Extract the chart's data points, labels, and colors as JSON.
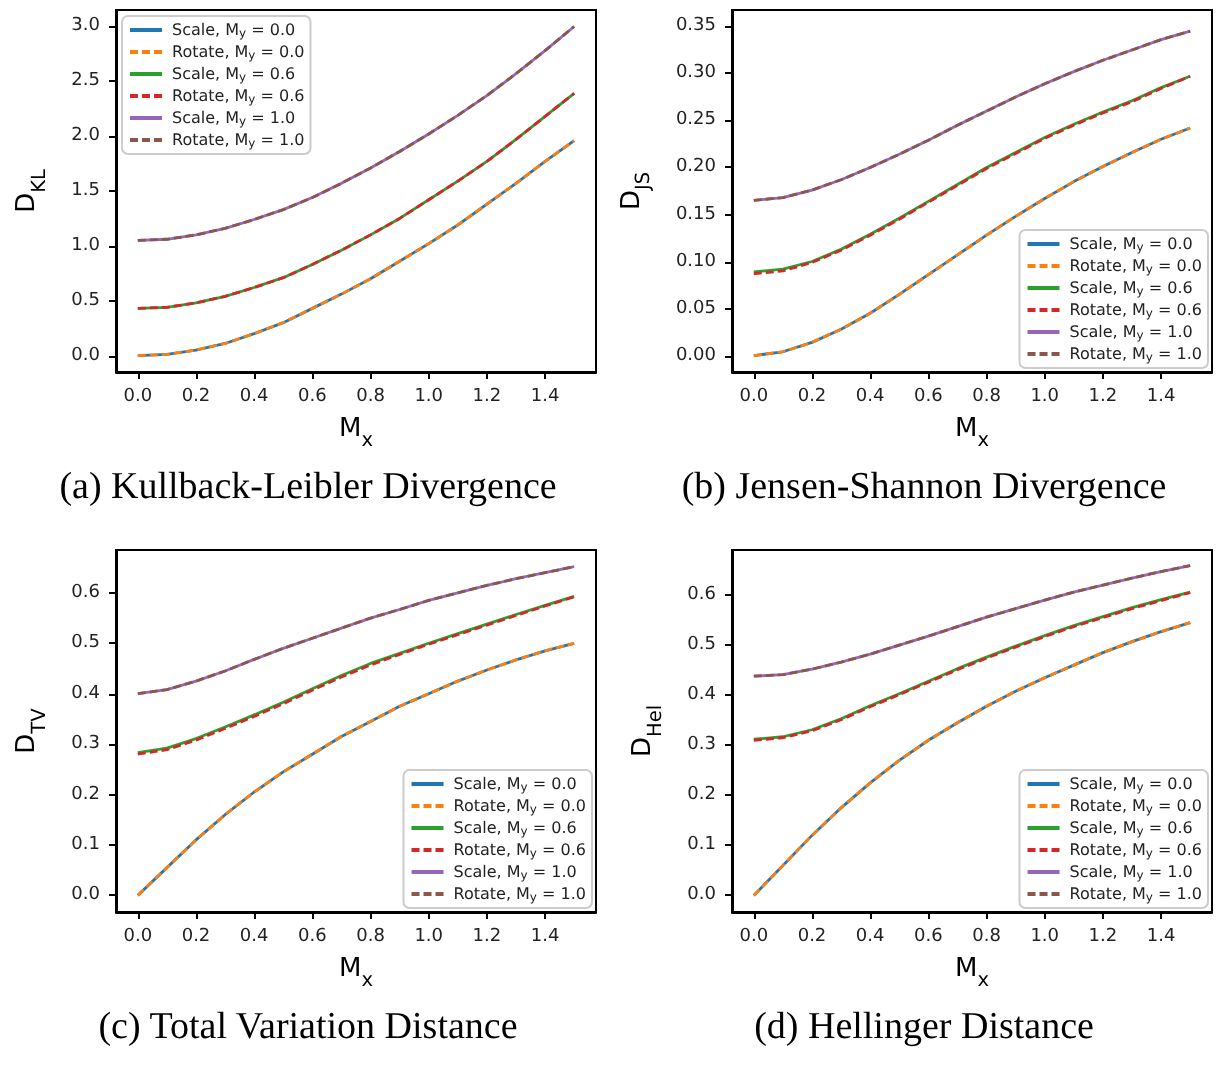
{
  "chart_data": [
    {
      "type": "line",
      "title": "(a) Kullback-Leibler Divergence",
      "xlabel": "M$_{x}$",
      "ylabel": "D$_{KL}$",
      "legend": "top left",
      "grid": false,
      "marker": "none",
      "x": [
        0,
        0.1,
        0.2,
        0.3,
        0.4,
        0.5,
        0.6,
        0.7,
        0.8,
        0.9,
        1.0,
        1.1,
        1.2,
        1.3,
        1.4,
        1.5
      ],
      "xlim": [
        -0.075,
        1.575
      ],
      "xticks": [
        {
          "value": 0,
          "label": "0.0"
        },
        {
          "value": 0.2,
          "label": "0.2"
        },
        {
          "value": 0.4,
          "label": "0.4"
        },
        {
          "value": 0.6,
          "label": "0.6"
        },
        {
          "value": 0.8,
          "label": "0.8"
        },
        {
          "value": 1,
          "label": "1.0"
        },
        {
          "value": 1.2,
          "label": "1.2"
        },
        {
          "value": 1.4,
          "label": "1.4"
        }
      ],
      "ylim": [
        -0.15,
        3.15
      ],
      "yticks": [
        {
          "value": 0,
          "label": "0.0"
        },
        0.5,
        {
          "value": 1,
          "label": "1.0"
        },
        1.5,
        {
          "value": 2,
          "label": "2.0"
        },
        2.5,
        {
          "value": 3,
          "label": "3.0"
        }
      ],
      "series": [
        {
          "name": "Scale, M$_{y}$ = 0.0",
          "color": "#1f77b4",
          "line_style": "solid",
          "values": [
            0,
            0.01,
            0.05,
            0.11,
            0.2,
            0.3,
            0.43,
            0.56,
            0.7,
            0.86,
            1.02,
            1.19,
            1.38,
            1.57,
            1.77,
            1.96
          ]
        },
        {
          "name": "Rotate, M$_{y}$ = 0.0",
          "color": "#ff7f0e",
          "line_style": "dashed",
          "values": [
            0,
            0.01,
            0.05,
            0.11,
            0.2,
            0.3,
            0.43,
            0.56,
            0.7,
            0.86,
            1.02,
            1.19,
            1.38,
            1.57,
            1.77,
            1.96
          ]
        },
        {
          "name": "Scale, M$_{y}$ = 0.6",
          "color": "#2ca02c",
          "line_style": "solid",
          "values": [
            0.43,
            0.44,
            0.48,
            0.54,
            0.62,
            0.71,
            0.83,
            0.96,
            1.1,
            1.25,
            1.42,
            1.59,
            1.77,
            1.97,
            2.18,
            2.39
          ]
        },
        {
          "name": "Rotate, M$_{y}$ = 0.6",
          "color": "#d62728",
          "line_style": "dashed",
          "values": [
            0.43,
            0.44,
            0.48,
            0.54,
            0.62,
            0.71,
            0.83,
            0.96,
            1.1,
            1.25,
            1.42,
            1.59,
            1.77,
            1.97,
            2.18,
            2.39
          ]
        },
        {
          "name": "Scale, M$_{y}$ = 1.0",
          "color": "#9467bd",
          "line_style": "solid",
          "values": [
            1.05,
            1.06,
            1.1,
            1.16,
            1.24,
            1.33,
            1.44,
            1.57,
            1.71,
            1.86,
            2.02,
            2.19,
            2.37,
            2.57,
            2.78,
            3.0
          ]
        },
        {
          "name": "Rotate, M$_{y}$ = 1.0",
          "color": "#8c564b",
          "line_style": "dashed",
          "values": [
            1.05,
            1.06,
            1.1,
            1.16,
            1.24,
            1.33,
            1.44,
            1.57,
            1.71,
            1.86,
            2.02,
            2.19,
            2.37,
            2.57,
            2.78,
            3.0
          ]
        }
      ]
    },
    {
      "type": "line",
      "title": "(b) Jensen-Shannon Divergence",
      "xlabel": "M$_{x}$",
      "ylabel": "D$_{JS}$",
      "legend": "bottom right",
      "grid": false,
      "marker": "none",
      "x": [
        0,
        0.1,
        0.2,
        0.3,
        0.4,
        0.5,
        0.6,
        0.7,
        0.8,
        0.9,
        1.0,
        1.1,
        1.2,
        1.3,
        1.4,
        1.5
      ],
      "xlim": [
        -0.075,
        1.575
      ],
      "xticks": [
        {
          "value": 0,
          "label": "0.0"
        },
        {
          "value": 0.2,
          "label": "0.2"
        },
        {
          "value": 0.4,
          "label": "0.4"
        },
        {
          "value": 0.6,
          "label": "0.6"
        },
        {
          "value": 0.8,
          "label": "0.8"
        },
        {
          "value": 1,
          "label": "1.0"
        },
        {
          "value": 1.2,
          "label": "1.2"
        },
        {
          "value": 1.4,
          "label": "1.4"
        }
      ],
      "ylim": [
        -0.0175,
        0.3675
      ],
      "yticks": [
        {
          "value": 0,
          "label": "0.00"
        },
        0.05,
        {
          "value": 0.1,
          "label": "0.10"
        },
        0.15,
        {
          "value": 0.2,
          "label": "0.20"
        },
        0.25,
        {
          "value": 0.3,
          "label": "0.30"
        },
        0.35
      ],
      "series": [
        {
          "name": "Scale, M$_{y}$ = 0.0",
          "color": "#1f77b4",
          "line_style": "solid",
          "values": [
            0,
            0.004,
            0.014,
            0.028,
            0.045,
            0.065,
            0.086,
            0.107,
            0.128,
            0.148,
            0.167,
            0.185,
            0.201,
            0.216,
            0.23,
            0.242
          ]
        },
        {
          "name": "Rotate, M$_{y}$ = 0.0",
          "color": "#ff7f0e",
          "line_style": "dashed",
          "values": [
            0,
            0.004,
            0.014,
            0.028,
            0.045,
            0.065,
            0.086,
            0.107,
            0.128,
            0.148,
            0.167,
            0.185,
            0.201,
            0.216,
            0.23,
            0.242
          ]
        },
        {
          "name": "Scale, M$_{y}$ = 0.6",
          "color": "#2ca02c",
          "line_style": "solid",
          "values": [
            0.089,
            0.092,
            0.1,
            0.113,
            0.129,
            0.146,
            0.164,
            0.182,
            0.2,
            0.216,
            0.232,
            0.246,
            0.259,
            0.271,
            0.285,
            0.297
          ]
        },
        {
          "name": "Rotate, M$_{y}$ = 0.6",
          "color": "#d62728",
          "line_style": "dashed",
          "values": [
            0.087,
            0.09,
            0.099,
            0.112,
            0.128,
            0.145,
            0.163,
            0.181,
            0.199,
            0.215,
            0.231,
            0.245,
            0.258,
            0.27,
            0.284,
            0.297
          ]
        },
        {
          "name": "Scale, M$_{y}$ = 1.0",
          "color": "#9467bd",
          "line_style": "solid",
          "values": [
            0.165,
            0.168,
            0.176,
            0.187,
            0.2,
            0.214,
            0.229,
            0.245,
            0.26,
            0.275,
            0.289,
            0.302,
            0.314,
            0.325,
            0.336,
            0.345
          ]
        },
        {
          "name": "Rotate, M$_{y}$ = 1.0",
          "color": "#8c564b",
          "line_style": "dashed",
          "values": [
            0.165,
            0.168,
            0.176,
            0.187,
            0.2,
            0.214,
            0.229,
            0.245,
            0.26,
            0.275,
            0.289,
            0.302,
            0.314,
            0.325,
            0.336,
            0.345
          ]
        }
      ]
    },
    {
      "type": "line",
      "title": "(c) Total Variation Distance",
      "xlabel": "M$_{x}$",
      "ylabel": "D$_{TV}$",
      "legend": "bottom right",
      "grid": false,
      "marker": "none",
      "x": [
        0,
        0.1,
        0.2,
        0.3,
        0.4,
        0.5,
        0.6,
        0.7,
        0.8,
        0.9,
        1.0,
        1.1,
        1.2,
        1.3,
        1.4,
        1.5
      ],
      "xlim": [
        -0.075,
        1.575
      ],
      "xticks": [
        {
          "value": 0,
          "label": "0.0"
        },
        {
          "value": 0.2,
          "label": "0.2"
        },
        {
          "value": 0.4,
          "label": "0.4"
        },
        {
          "value": 0.6,
          "label": "0.6"
        },
        {
          "value": 0.8,
          "label": "0.8"
        },
        {
          "value": 1,
          "label": "1.0"
        },
        {
          "value": 1.2,
          "label": "1.2"
        },
        {
          "value": 1.4,
          "label": "1.4"
        }
      ],
      "ylim": [
        -0.033,
        0.685
      ],
      "yticks": [
        {
          "value": 0,
          "label": "0.0"
        },
        0.1,
        0.2,
        0.3,
        0.4,
        0.5,
        0.6
      ],
      "series": [
        {
          "name": "Scale, M$_{y}$ = 0.0",
          "color": "#1f77b4",
          "line_style": "solid",
          "values": [
            0,
            0.055,
            0.11,
            0.16,
            0.205,
            0.245,
            0.28,
            0.315,
            0.345,
            0.375,
            0.4,
            0.425,
            0.447,
            0.467,
            0.485,
            0.5
          ]
        },
        {
          "name": "Rotate, M$_{y}$ = 0.0",
          "color": "#ff7f0e",
          "line_style": "dashed",
          "values": [
            0,
            0.055,
            0.11,
            0.16,
            0.205,
            0.245,
            0.28,
            0.315,
            0.345,
            0.375,
            0.4,
            0.425,
            0.447,
            0.467,
            0.485,
            0.5
          ]
        },
        {
          "name": "Scale, M$_{y}$ = 0.6",
          "color": "#2ca02c",
          "line_style": "solid",
          "values": [
            0.283,
            0.292,
            0.311,
            0.334,
            0.358,
            0.383,
            0.41,
            0.436,
            0.46,
            0.48,
            0.5,
            0.519,
            0.538,
            0.557,
            0.575,
            0.593
          ]
        },
        {
          "name": "Rotate, M$_{y}$ = 0.6",
          "color": "#d62728",
          "line_style": "dashed",
          "values": [
            0.28,
            0.289,
            0.308,
            0.331,
            0.355,
            0.38,
            0.407,
            0.433,
            0.457,
            0.478,
            0.498,
            0.517,
            0.536,
            0.555,
            0.574,
            0.592
          ]
        },
        {
          "name": "Scale, M$_{y}$ = 1.0",
          "color": "#9467bd",
          "line_style": "solid",
          "values": [
            0.4,
            0.408,
            0.425,
            0.445,
            0.468,
            0.49,
            0.51,
            0.53,
            0.55,
            0.567,
            0.585,
            0.6,
            0.615,
            0.628,
            0.64,
            0.652
          ]
        },
        {
          "name": "Rotate, M$_{y}$ = 1.0",
          "color": "#8c564b",
          "line_style": "dashed",
          "values": [
            0.4,
            0.408,
            0.425,
            0.445,
            0.468,
            0.49,
            0.51,
            0.53,
            0.55,
            0.567,
            0.585,
            0.6,
            0.615,
            0.628,
            0.64,
            0.652
          ]
        }
      ]
    },
    {
      "type": "line",
      "title": "(d) Hellinger Distance",
      "xlabel": "M$_{x}$",
      "ylabel": "D$_{Hel}$",
      "legend": "bottom right",
      "grid": false,
      "marker": "none",
      "x": [
        0,
        0.1,
        0.2,
        0.3,
        0.4,
        0.5,
        0.6,
        0.7,
        0.8,
        0.9,
        1.0,
        1.1,
        1.2,
        1.3,
        1.4,
        1.5
      ],
      "xlim": [
        -0.075,
        1.575
      ],
      "xticks": [
        {
          "value": 0,
          "label": "0.0"
        },
        {
          "value": 0.2,
          "label": "0.2"
        },
        {
          "value": 0.4,
          "label": "0.4"
        },
        {
          "value": 0.6,
          "label": "0.6"
        },
        {
          "value": 0.8,
          "label": "0.8"
        },
        {
          "value": 1,
          "label": "1.0"
        },
        {
          "value": 1.2,
          "label": "1.2"
        },
        {
          "value": 1.4,
          "label": "1.4"
        }
      ],
      "ylim": [
        -0.033,
        0.69
      ],
      "yticks": [
        {
          "value": 0,
          "label": "0.0"
        },
        0.1,
        0.2,
        0.3,
        0.4,
        0.5,
        0.6
      ],
      "series": [
        {
          "name": "Scale, M$_{y}$ = 0.0",
          "color": "#1f77b4",
          "line_style": "solid",
          "values": [
            0,
            0.06,
            0.12,
            0.175,
            0.225,
            0.27,
            0.31,
            0.345,
            0.378,
            0.408,
            0.435,
            0.46,
            0.485,
            0.507,
            0.527,
            0.545
          ]
        },
        {
          "name": "Rotate, M$_{y}$ = 0.0",
          "color": "#ff7f0e",
          "line_style": "dashed",
          "values": [
            0,
            0.06,
            0.12,
            0.175,
            0.225,
            0.27,
            0.31,
            0.345,
            0.378,
            0.408,
            0.435,
            0.46,
            0.485,
            0.507,
            0.527,
            0.545
          ]
        },
        {
          "name": "Scale, M$_{y}$ = 0.6",
          "color": "#2ca02c",
          "line_style": "solid",
          "values": [
            0.312,
            0.317,
            0.331,
            0.353,
            0.379,
            0.403,
            0.428,
            0.453,
            0.476,
            0.498,
            0.519,
            0.539,
            0.557,
            0.575,
            0.591,
            0.606
          ]
        },
        {
          "name": "Rotate, M$_{y}$ = 0.6",
          "color": "#d62728",
          "line_style": "dashed",
          "values": [
            0.31,
            0.315,
            0.329,
            0.351,
            0.377,
            0.401,
            0.426,
            0.451,
            0.474,
            0.496,
            0.517,
            0.537,
            0.555,
            0.573,
            0.589,
            0.605
          ]
        },
        {
          "name": "Scale, M$_{y}$ = 1.0",
          "color": "#9467bd",
          "line_style": "solid",
          "values": [
            0.438,
            0.441,
            0.452,
            0.466,
            0.482,
            0.5,
            0.518,
            0.537,
            0.556,
            0.573,
            0.59,
            0.606,
            0.62,
            0.634,
            0.647,
            0.659
          ]
        },
        {
          "name": "Rotate, M$_{y}$ = 1.0",
          "color": "#8c564b",
          "line_style": "dashed",
          "values": [
            0.438,
            0.441,
            0.452,
            0.466,
            0.482,
            0.5,
            0.518,
            0.537,
            0.556,
            0.573,
            0.59,
            0.606,
            0.62,
            0.634,
            0.647,
            0.659
          ]
        }
      ]
    }
  ]
}
